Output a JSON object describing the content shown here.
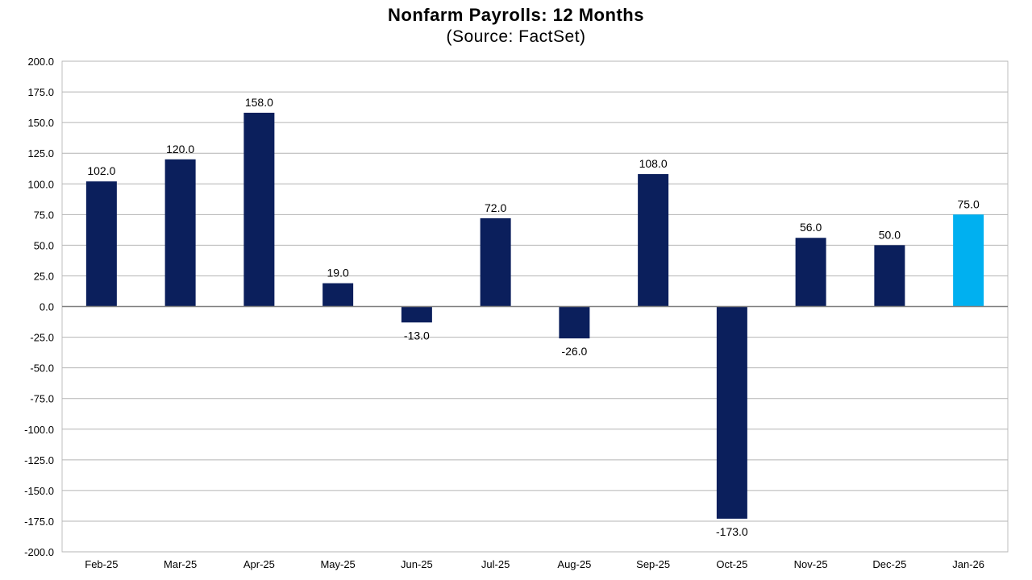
{
  "chart_data": {
    "type": "bar",
    "title": "Nonfarm Payrolls:  12 Months",
    "subtitle": "(Source: FactSet)",
    "xlabel": "",
    "ylabel": "",
    "categories": [
      "Feb-25",
      "Mar-25",
      "Apr-25",
      "May-25",
      "Jun-25",
      "Jul-25",
      "Aug-25",
      "Sep-25",
      "Oct-25",
      "Nov-25",
      "Dec-25",
      "Jan-26"
    ],
    "values": [
      102.0,
      120.0,
      158.0,
      19.0,
      -13.0,
      72.0,
      -26.0,
      108.0,
      -173.0,
      56.0,
      50.0,
      75.0
    ],
    "data_labels": [
      "102.0",
      "120.0",
      "158.0",
      "19.0",
      "-13.0",
      "72.0",
      "-26.0",
      "108.0",
      "-173.0",
      "56.0",
      "50.0",
      "75.0"
    ],
    "ylim": [
      -200,
      200
    ],
    "yticks": [
      200,
      175,
      150,
      125,
      100,
      75,
      50,
      25,
      0,
      -25,
      -50,
      -75,
      -100,
      -125,
      -150,
      -175,
      -200
    ],
    "ytick_labels": [
      "200.0",
      "175.0",
      "150.0",
      "125.0",
      "100.0",
      "75.0",
      "50.0",
      "25.0",
      "0.0",
      "-25.0",
      "-50.0",
      "-75.0",
      "-100.0",
      "-125.0",
      "-150.0",
      "-175.0",
      "-200.0"
    ],
    "grid": true,
    "legend": "none",
    "colors": {
      "bar": "#0b1f5c",
      "highlight_bar": "#00b0f0",
      "highlight_index": 11,
      "grid": "#b4b4b4",
      "axis": "#7f7f7f",
      "text": "#000000"
    }
  }
}
